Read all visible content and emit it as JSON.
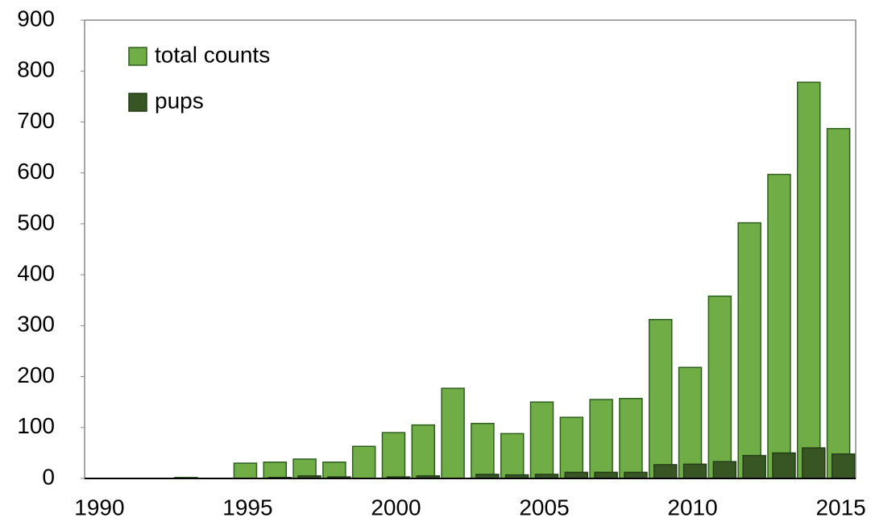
{
  "chart_data": {
    "type": "bar",
    "categories": [
      "1990",
      null,
      null,
      null,
      null,
      "1995",
      null,
      null,
      null,
      null,
      "2000",
      null,
      null,
      null,
      null,
      "2005",
      null,
      null,
      null,
      null,
      "2010",
      null,
      null,
      null,
      null,
      "2015"
    ],
    "series": [
      {
        "name": "total counts",
        "color": "#70ad47",
        "values": [
          0,
          0,
          0,
          2,
          0,
          30,
          32,
          38,
          32,
          63,
          90,
          105,
          177,
          108,
          88,
          150,
          120,
          155,
          157,
          312,
          218,
          358,
          502,
          597,
          778,
          687
        ]
      },
      {
        "name": "pups",
        "color": "#375623",
        "values": [
          0,
          0,
          0,
          0,
          0,
          0,
          2,
          5,
          3,
          0,
          3,
          5,
          0,
          8,
          7,
          8,
          12,
          12,
          12,
          27,
          28,
          33,
          45,
          50,
          60,
          48
        ]
      }
    ],
    "ylim": [
      0,
      900
    ],
    "yticks": [
      0,
      100,
      200,
      300,
      400,
      500,
      600,
      700,
      800,
      900
    ],
    "legend": "upper-left"
  }
}
